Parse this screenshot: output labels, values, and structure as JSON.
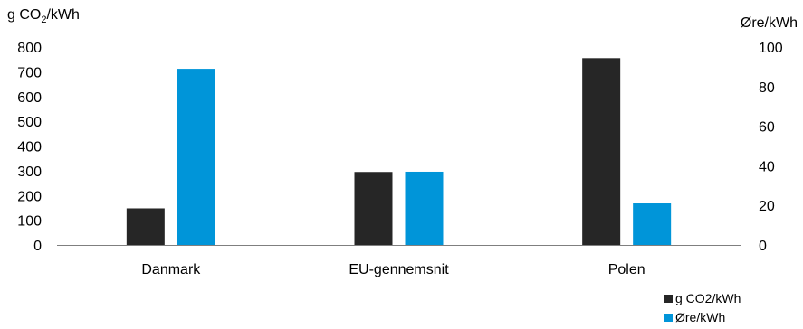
{
  "chart_data": {
    "type": "bar",
    "categories": [
      "Danmark",
      "EU-gennemsnit",
      "Polen"
    ],
    "series": [
      {
        "name": "g CO2/kWh",
        "axis": "left",
        "color": "#262626",
        "values": [
          148,
          295,
          755
        ]
      },
      {
        "name": "Øre/kWh",
        "axis": "right",
        "color": "#0095d9",
        "values": [
          89,
          37,
          21
        ]
      }
    ],
    "ylabel_left": {
      "pre": "g CO",
      "sub": "2",
      "post": "/kWh"
    },
    "ylabel_right": "Øre/kWh",
    "ylim_left": [
      0,
      800
    ],
    "ylim_right": [
      0,
      100
    ],
    "yticks_left": [
      "0",
      "100",
      "200",
      "300",
      "400",
      "500",
      "600",
      "700",
      "800"
    ],
    "yticks_right": [
      "0",
      "20",
      "40",
      "60",
      "80",
      "100"
    ],
    "grid": false,
    "legend_position": "bottom-right"
  }
}
